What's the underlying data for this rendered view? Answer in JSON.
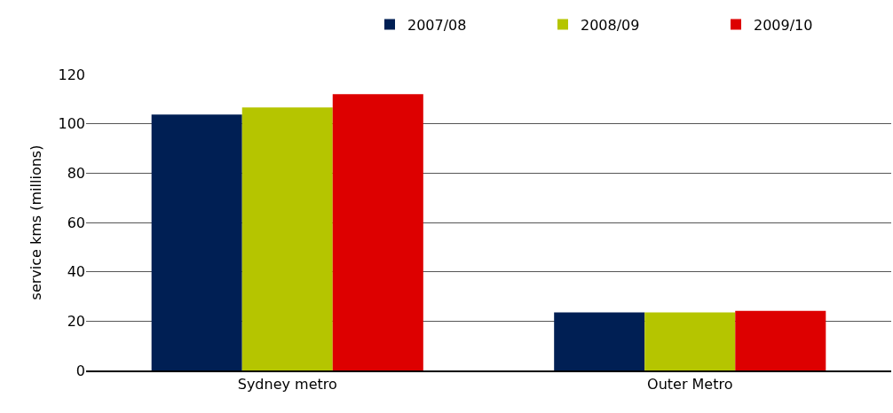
{
  "chart_data": {
    "type": "bar",
    "ylabel": "service kms (millions)",
    "categories": [
      "Sydney metro",
      "Outer Metro"
    ],
    "series": [
      {
        "name": "2007/08",
        "color": "#001f54",
        "values": [
          103.7,
          23.5
        ]
      },
      {
        "name": "2008/09",
        "color": "#b5c500",
        "values": [
          106.6,
          23.5
        ]
      },
      {
        "name": "2009/10",
        "color": "#dd0000",
        "values": [
          112,
          24.2
        ]
      }
    ],
    "ylim": [
      0,
      120
    ],
    "yticks": [
      0,
      20,
      40,
      60,
      80,
      100,
      120
    ],
    "grid": "y",
    "legend": "top right"
  }
}
